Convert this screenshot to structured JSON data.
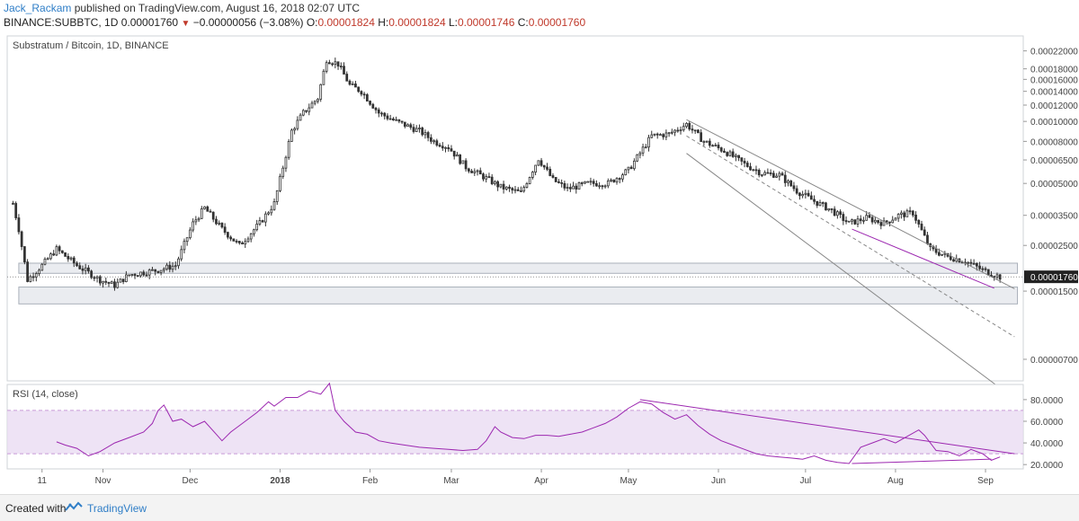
{
  "header": {
    "author": "Jack_Rackam",
    "published": "published on TradingView.com, August 16, 2018 02:07 UTC",
    "symbol": "BINANCE:SUBBTC, 1D",
    "last": "0.00001760",
    "change": "−0.00000056 (−3.08%)",
    "o_label": "O:",
    "o_value": "0.00001824",
    "h_label": "H:",
    "h_value": "0.00001824",
    "l_label": "L:",
    "l_value": "0.00001746",
    "c_label": "C:",
    "c_value": "0.00001760",
    "change_icon": "triangle-down-icon"
  },
  "colors": {
    "down": "#c0392b",
    "accent": "#2f7ec7",
    "rsi_line": "#9c27b0",
    "rsi_band": "#e8d9f2",
    "candle": "#333333",
    "trend_gray": "#888888"
  },
  "chart_data": [
    {
      "type": "candlestick",
      "title": "Substratum / Bitcoin, 1D, BINANCE",
      "y_scale": "log",
      "y_tick_labels": [
        "0.00022000",
        "0.00018000",
        "0.00016000",
        "0.00014000",
        "0.00012000",
        "0.00010000",
        "0.00008000",
        "0.00006500",
        "0.00005000",
        "0.00003500",
        "0.00002500",
        "0.00001500",
        "0.00000700"
      ],
      "last_price_label": "0.00001760",
      "x_tick_labels": [
        "11",
        "Nov",
        "Dec",
        "2018",
        "Feb",
        "Mar",
        "Apr",
        "May",
        "Jun",
        "Jul",
        "Aug",
        "Sep"
      ],
      "x_tick_days": [
        10,
        31,
        61,
        92,
        123,
        151,
        182,
        212,
        243,
        273,
        304,
        335
      ],
      "x_range_days": [
        -2,
        348
      ],
      "y_range": [
        5.5e-06,
        0.00026
      ],
      "keypoints": [
        [
          0,
          4e-05
        ],
        [
          2,
          3e-05
        ],
        [
          5,
          1.7e-05
        ],
        [
          10,
          2e-05
        ],
        [
          15,
          2.4e-05
        ],
        [
          22,
          2e-05
        ],
        [
          30,
          1.7e-05
        ],
        [
          35,
          1.6e-05
        ],
        [
          40,
          1.8e-05
        ],
        [
          50,
          1.9e-05
        ],
        [
          56,
          2e-05
        ],
        [
          62,
          3.2e-05
        ],
        [
          66,
          3.8e-05
        ],
        [
          72,
          3e-05
        ],
        [
          78,
          2.5e-05
        ],
        [
          85,
          3.2e-05
        ],
        [
          90,
          4e-05
        ],
        [
          96,
          9e-05
        ],
        [
          100,
          0.00011
        ],
        [
          105,
          0.00013
        ],
        [
          108,
          0.0002
        ],
        [
          112,
          0.00019
        ],
        [
          116,
          0.00015
        ],
        [
          120,
          0.00014
        ],
        [
          126,
          0.00011
        ],
        [
          132,
          0.0001
        ],
        [
          140,
          9e-05
        ],
        [
          145,
          8e-05
        ],
        [
          150,
          7.5e-05
        ],
        [
          156,
          6e-05
        ],
        [
          163,
          5.3e-05
        ],
        [
          168,
          4.8e-05
        ],
        [
          175,
          4.5e-05
        ],
        [
          181,
          6.6e-05
        ],
        [
          186,
          5.2e-05
        ],
        [
          191,
          4.7e-05
        ],
        [
          198,
          5e-05
        ],
        [
          205,
          5e-05
        ],
        [
          212,
          5.8e-05
        ],
        [
          220,
          8.5e-05
        ],
        [
          226,
          8.7e-05
        ],
        [
          232,
          9.7e-05
        ],
        [
          238,
          8e-05
        ],
        [
          245,
          7.2e-05
        ],
        [
          252,
          6.2e-05
        ],
        [
          258,
          5.6e-05
        ],
        [
          264,
          5.5e-05
        ],
        [
          270,
          4.6e-05
        ],
        [
          276,
          4.1e-05
        ],
        [
          282,
          3.7e-05
        ],
        [
          288,
          3.2e-05
        ],
        [
          294,
          3.4e-05
        ],
        [
          300,
          3.2e-05
        ],
        [
          305,
          3.5e-05
        ],
        [
          310,
          3.6e-05
        ],
        [
          316,
          2.4e-05
        ],
        [
          322,
          2.2e-05
        ],
        [
          328,
          2.1e-05
        ],
        [
          334,
          1.9e-05
        ],
        [
          338,
          1.8e-05
        ],
        [
          340,
          1.76e-05
        ]
      ],
      "support_zones": [
        {
          "low": 1.83e-05,
          "high": 2.05e-05
        },
        {
          "low": 1.3e-05,
          "high": 1.57e-05
        }
      ],
      "trendlines_price": [
        {
          "from": [
            232,
            0.000102
          ],
          "to": [
            345,
            1.54e-05
          ]
        },
        {
          "from": [
            232,
            7e-05
          ],
          "to": [
            345,
            4.5e-06
          ]
        },
        {
          "from": [
            232,
            8.5e-05
          ],
          "to": [
            345,
            9e-06
          ]
        },
        {
          "from": [
            289,
            3e-05
          ],
          "to": [
            338,
            1.55e-05
          ]
        }
      ]
    },
    {
      "type": "line",
      "title": "RSI (14, close)",
      "y_tick_labels": [
        "80.0000",
        "60.0000",
        "40.0000",
        "20.0000"
      ],
      "y_ticks": [
        80,
        60,
        40,
        20
      ],
      "y_range": [
        16,
        94
      ],
      "band": [
        30,
        70
      ],
      "points": [
        [
          15,
          41
        ],
        [
          18,
          38
        ],
        [
          22,
          35
        ],
        [
          26,
          28
        ],
        [
          30,
          32
        ],
        [
          35,
          40
        ],
        [
          40,
          45
        ],
        [
          45,
          50
        ],
        [
          48,
          58
        ],
        [
          50,
          70
        ],
        [
          52,
          75
        ],
        [
          55,
          60
        ],
        [
          58,
          62
        ],
        [
          62,
          55
        ],
        [
          66,
          60
        ],
        [
          70,
          48
        ],
        [
          72,
          42
        ],
        [
          75,
          50
        ],
        [
          80,
          60
        ],
        [
          84,
          68
        ],
        [
          88,
          78
        ],
        [
          90,
          74
        ],
        [
          94,
          82
        ],
        [
          98,
          82
        ],
        [
          102,
          88
        ],
        [
          106,
          85
        ],
        [
          109,
          95
        ],
        [
          111,
          70
        ],
        [
          114,
          60
        ],
        [
          118,
          50
        ],
        [
          122,
          48
        ],
        [
          126,
          42
        ],
        [
          130,
          40
        ],
        [
          135,
          38
        ],
        [
          140,
          36
        ],
        [
          145,
          35
        ],
        [
          150,
          34
        ],
        [
          155,
          33
        ],
        [
          160,
          34
        ],
        [
          163,
          42
        ],
        [
          166,
          55
        ],
        [
          168,
          50
        ],
        [
          172,
          45
        ],
        [
          176,
          44
        ],
        [
          180,
          47
        ],
        [
          184,
          47
        ],
        [
          188,
          46
        ],
        [
          192,
          48
        ],
        [
          196,
          50
        ],
        [
          200,
          54
        ],
        [
          204,
          58
        ],
        [
          208,
          64
        ],
        [
          212,
          72
        ],
        [
          216,
          78
        ],
        [
          220,
          76
        ],
        [
          224,
          68
        ],
        [
          228,
          62
        ],
        [
          232,
          66
        ],
        [
          236,
          56
        ],
        [
          240,
          48
        ],
        [
          244,
          42
        ],
        [
          248,
          38
        ],
        [
          252,
          34
        ],
        [
          256,
          30
        ],
        [
          260,
          28
        ],
        [
          264,
          27
        ],
        [
          268,
          26
        ],
        [
          272,
          25
        ],
        [
          276,
          28
        ],
        [
          280,
          24
        ],
        [
          284,
          22
        ],
        [
          288,
          21
        ],
        [
          292,
          36
        ],
        [
          296,
          40
        ],
        [
          300,
          44
        ],
        [
          304,
          40
        ],
        [
          308,
          46
        ],
        [
          312,
          52
        ],
        [
          314,
          47
        ],
        [
          318,
          33
        ],
        [
          322,
          32
        ],
        [
          326,
          28
        ],
        [
          330,
          34
        ],
        [
          334,
          30
        ],
        [
          337,
          24
        ],
        [
          340,
          27
        ]
      ],
      "trendlines": [
        {
          "from": [
            216,
            80
          ],
          "to": [
            345,
            30
          ]
        },
        {
          "from": [
            289,
            21
          ],
          "to": [
            337,
            25
          ]
        }
      ]
    }
  ],
  "footer": {
    "created_label": "Created with",
    "brand": "TradingView",
    "logo_icon": "tradingview-logo-icon"
  }
}
